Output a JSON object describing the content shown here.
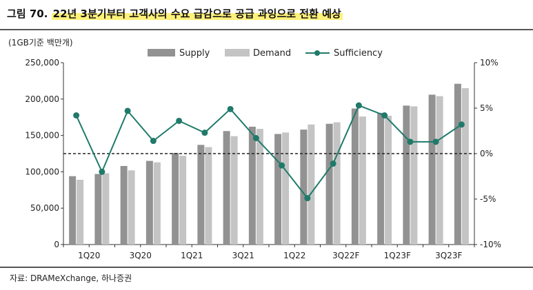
{
  "header": {
    "figure_no": "그림 70.",
    "title": "22년 3분기부터 고객사의 수요 급감으로 공급 과잉으로 전환 예상"
  },
  "source": "자료: DRAMeXchange, 하나증권",
  "colors": {
    "supply": "#929292",
    "demand": "#c4c4c4",
    "sufficiency": "#1f7a6a",
    "zero_line": "#222222"
  },
  "chart_data": {
    "type": "bar",
    "unit_label": "(1GB기준 백만개)",
    "categories": [
      "1Q20",
      "2Q20",
      "3Q20",
      "4Q20",
      "1Q21",
      "2Q21",
      "3Q21",
      "4Q21",
      "1Q22",
      "2Q22",
      "3Q22F",
      "4Q22F",
      "1Q23F",
      "2Q23F",
      "3Q23F",
      "4Q23F"
    ],
    "x_tick_labels": [
      "1Q20",
      "",
      "3Q20",
      "",
      "1Q21",
      "",
      "3Q21",
      "",
      "1Q22",
      "",
      "3Q22F",
      "",
      "1Q23F",
      "",
      "3Q23F",
      ""
    ],
    "series": [
      {
        "name": "Supply",
        "type": "bar",
        "axis": "left",
        "values": [
          94000,
          97000,
          108000,
          115000,
          126000,
          137000,
          156000,
          162000,
          152000,
          158000,
          166000,
          187000,
          181000,
          191000,
          206000,
          221000
        ]
      },
      {
        "name": "Demand",
        "type": "bar",
        "axis": "left",
        "values": [
          89000,
          98000,
          102000,
          113000,
          122000,
          134000,
          149000,
          159000,
          154000,
          165000,
          168000,
          176000,
          177000,
          190000,
          204000,
          215000
        ]
      },
      {
        "name": "Sufficiency",
        "type": "line",
        "axis": "right",
        "values": [
          4.2,
          -2.0,
          4.7,
          1.4,
          3.6,
          2.3,
          4.9,
          1.7,
          -1.3,
          -4.9,
          -1.1,
          5.3,
          4.2,
          1.3,
          1.3,
          3.2
        ]
      }
    ],
    "y_left": {
      "min": 0,
      "max": 250000,
      "ticks": [
        0,
        50000,
        100000,
        150000,
        200000,
        250000
      ],
      "tick_labels": [
        "0",
        "50,000",
        "100,000",
        "150,000",
        "200,000",
        "250,000"
      ]
    },
    "y_right": {
      "min": -10,
      "max": 10,
      "ticks": [
        -10,
        -5,
        0,
        5,
        10
      ],
      "tick_labels": [
        "-10%",
        "-5%",
        "0%",
        "5%",
        "10%"
      ]
    },
    "zero_reference": 0,
    "legend_position": "top"
  }
}
